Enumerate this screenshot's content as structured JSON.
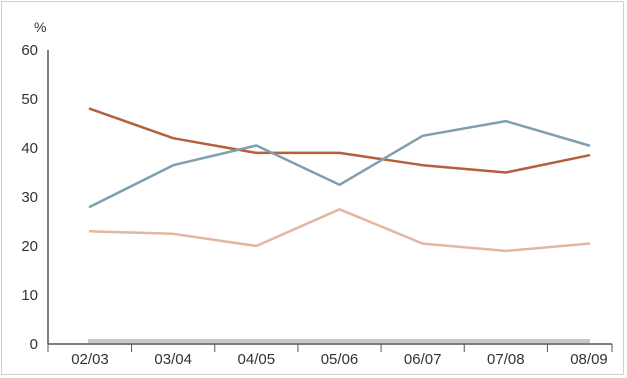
{
  "chart_data": {
    "type": "line",
    "title": "",
    "xlabel": "",
    "ylabel": "%",
    "categories": [
      "02/03",
      "03/04",
      "04/05",
      "05/06",
      "06/07",
      "07/08",
      "08/09"
    ],
    "ylim": [
      0,
      60
    ],
    "yticks": [
      "0",
      "10",
      "20",
      "30",
      "40",
      "50",
      "60"
    ],
    "grid": false,
    "legend": "none",
    "series": [
      {
        "color": "#b5603a",
        "values": [
          48,
          42,
          39,
          39,
          36.5,
          35,
          38.5
        ]
      },
      {
        "color": "#7f9fb0",
        "values": [
          28,
          36.5,
          40.5,
          32.5,
          42.5,
          45.5,
          40.5
        ]
      },
      {
        "color": "#e3b6a0",
        "values": [
          23,
          22.5,
          20,
          27.5,
          20.5,
          19,
          20.5
        ]
      }
    ],
    "baseline_color": "#c8c8c8",
    "axis_color": "#555555"
  }
}
